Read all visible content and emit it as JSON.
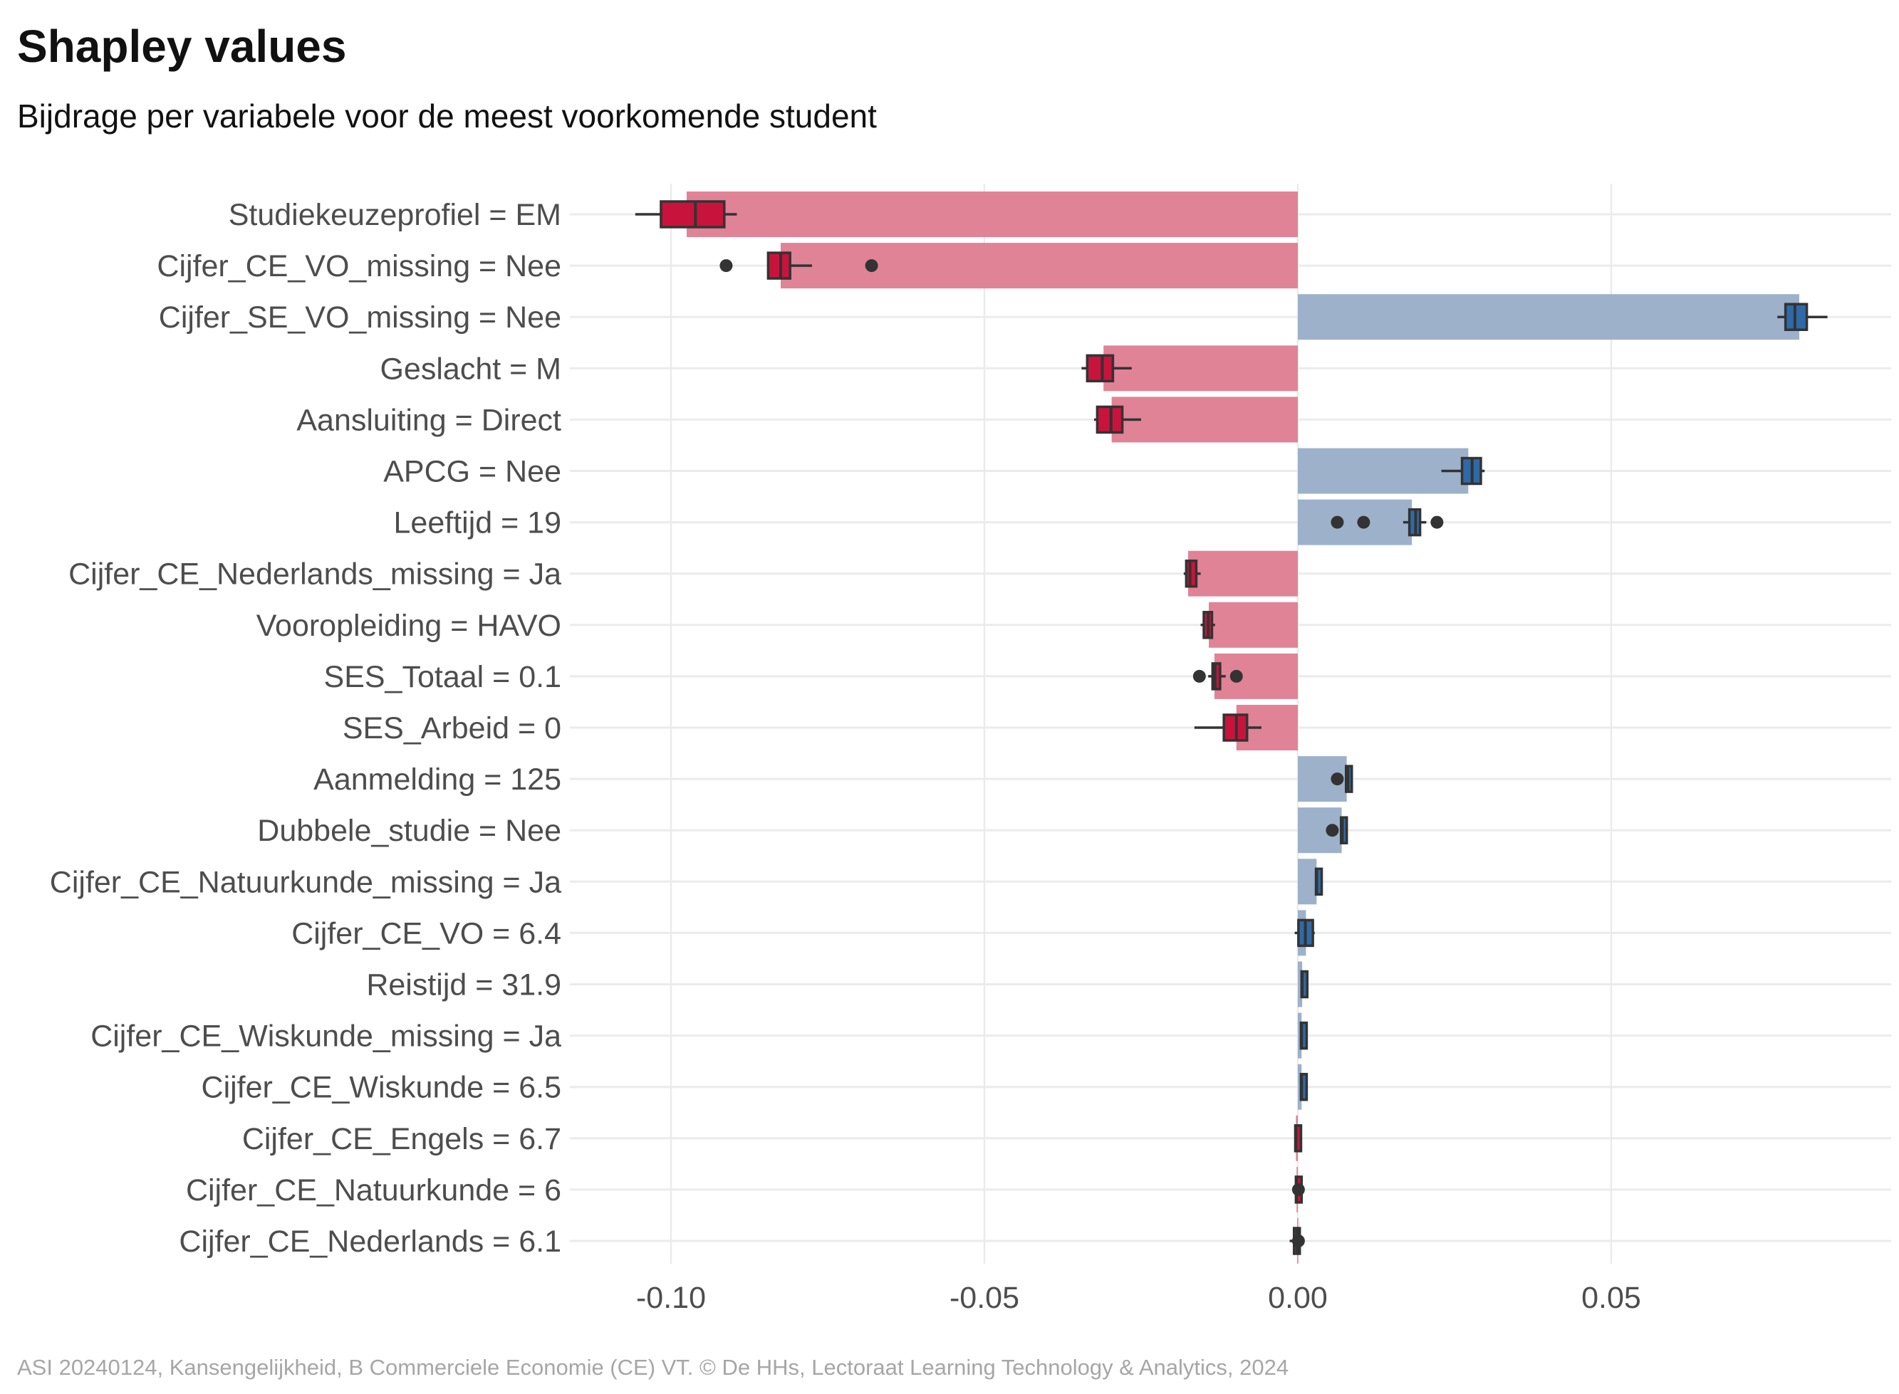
{
  "chart_data": {
    "type": "bar",
    "title": "Shapley values",
    "subtitle": "Bijdrage per variabele voor de meest voorkomende student",
    "caption": "ASI 20240124, Kansengelijkheid, B Commerciele Economie (CE) VT. © De HHs, Lectoraat Learning Technology & Analytics, 2024",
    "xlim": [
      -0.1,
      0.085
    ],
    "xticks": [
      -0.1,
      -0.05,
      0.0,
      0.05
    ],
    "xtick_labels": [
      "-0.10",
      "-0.05",
      "0.00",
      "0.05"
    ],
    "grid": true,
    "colors": {
      "negative_bar": "#e08396",
      "positive_bar": "#9db1cb",
      "negative_box": "#c8143c",
      "positive_box": "#2f6aa8",
      "outline": "#333333",
      "grid": "#ebebeb"
    },
    "categories": [
      "Studiekeuzeprofiel = EM",
      "Cijfer_CE_VO_missing = Nee",
      "Cijfer_SE_VO_missing = Nee",
      "Geslacht = M",
      "Aansluiting = Direct",
      "APCG = Nee",
      "Leeftijd = 19",
      "Cijfer_CE_Nederlands_missing = Ja",
      "Vooropleiding = HAVO",
      "SES_Totaal = 0.1",
      "SES_Arbeid = 0",
      "Aanmelding = 125",
      "Dubbele_studie = Nee",
      "Cijfer_CE_Natuurkunde_missing = Ja",
      "Cijfer_CE_VO = 6.4",
      "Reistijd = 31.9",
      "Cijfer_CE_Wiskunde_missing = Ja",
      "Cijfer_CE_Wiskunde = 6.5",
      "Cijfer_CE_Engels = 6.7",
      "Cijfer_CE_Natuurkunde = 6",
      "Cijfer_CE_Nederlands = 6.1"
    ],
    "values": [
      -0.0975,
      -0.0825,
      0.08,
      -0.031,
      -0.0297,
      0.0272,
      0.0182,
      -0.0175,
      -0.0142,
      -0.0133,
      -0.0098,
      0.0078,
      0.007,
      0.003,
      0.0013,
      0.0007,
      0.0006,
      0.0006,
      -0.0003,
      -0.0002,
      -0.0001
    ],
    "boxplots": [
      {
        "min": -0.1057,
        "q1": -0.1016,
        "median": -0.0961,
        "q3": -0.0915,
        "max": -0.0895,
        "outliers": []
      },
      {
        "min": -0.0845,
        "q1": -0.0845,
        "median": -0.0825,
        "q3": -0.081,
        "max": -0.0775,
        "outliers": [
          -0.0912,
          -0.068
        ]
      },
      {
        "min": 0.0765,
        "q1": 0.0778,
        "median": 0.0793,
        "q3": 0.0812,
        "max": 0.0845,
        "outliers": []
      },
      {
        "min": -0.0345,
        "q1": -0.0336,
        "median": -0.0312,
        "q3": -0.0295,
        "max": -0.0265,
        "outliers": []
      },
      {
        "min": -0.0325,
        "q1": -0.032,
        "median": -0.0298,
        "q3": -0.028,
        "max": -0.025,
        "outliers": []
      },
      {
        "min": 0.0229,
        "q1": 0.0262,
        "median": 0.0278,
        "q3": 0.0292,
        "max": 0.0298,
        "outliers": []
      },
      {
        "min": 0.0168,
        "q1": 0.0178,
        "median": 0.0188,
        "q3": 0.0195,
        "max": 0.0205,
        "outliers": [
          0.0063,
          0.0105,
          0.0222
        ]
      },
      {
        "min": -0.0182,
        "q1": -0.0178,
        "median": -0.0172,
        "q3": -0.0162,
        "max": -0.0155,
        "outliers": []
      },
      {
        "min": -0.0155,
        "q1": -0.015,
        "median": -0.0143,
        "q3": -0.0137,
        "max": -0.0132,
        "outliers": []
      },
      {
        "min": -0.0143,
        "q1": -0.0136,
        "median": -0.0132,
        "q3": -0.0124,
        "max": -0.0115,
        "outliers": [
          -0.0157,
          -0.0098
        ]
      },
      {
        "min": -0.0165,
        "q1": -0.0118,
        "median": -0.0098,
        "q3": -0.0081,
        "max": -0.0058,
        "outliers": []
      },
      {
        "min": 0.0075,
        "q1": 0.0077,
        "median": 0.008,
        "q3": 0.0083,
        "max": 0.0083,
        "outliers": [
          0.0063
        ]
      },
      {
        "min": 0.0068,
        "q1": 0.0069,
        "median": 0.0071,
        "q3": 0.0075,
        "max": 0.0075,
        "outliers": [
          0.0055
        ]
      },
      {
        "min": 0.0028,
        "q1": 0.0029,
        "median": 0.003,
        "q3": 0.0032,
        "max": 0.0033,
        "outliers": []
      },
      {
        "min": -0.0005,
        "q1": 0.0001,
        "median": 0.0012,
        "q3": 0.0024,
        "max": 0.0027,
        "outliers": []
      },
      {
        "min": 0.0006,
        "q1": 0.0006,
        "median": 0.0007,
        "q3": 0.0009,
        "max": 0.001,
        "outliers": []
      },
      {
        "min": 0.0005,
        "q1": 0.0005,
        "median": 0.0006,
        "q3": 0.0008,
        "max": 0.0009,
        "outliers": []
      },
      {
        "min": 0.0005,
        "q1": 0.0005,
        "median": 0.0006,
        "q3": 0.0008,
        "max": 0.0009,
        "outliers": []
      },
      {
        "min": -0.0005,
        "q1": -0.0004,
        "median": -0.0003,
        "q3": -0.0002,
        "max": -0.0001,
        "outliers": []
      },
      {
        "min": -0.0004,
        "q1": -0.0003,
        "median": -0.0002,
        "q3": -0.0001,
        "max": 0.0,
        "outliers": [
          0.0001
        ]
      },
      {
        "min": -0.0013,
        "q1": -0.0006,
        "median": -0.0001,
        "q3": 0.0003,
        "max": 0.0009,
        "outliers": [
          0.0001
        ]
      }
    ]
  }
}
